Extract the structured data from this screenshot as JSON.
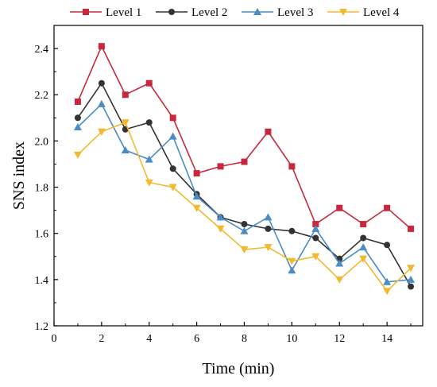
{
  "chart_data": {
    "type": "line",
    "xlabel": "Time (min)",
    "ylabel": "SNS index",
    "xlim": [
      0,
      15.5
    ],
    "ylim": [
      1.2,
      2.5
    ],
    "xticks": [
      0,
      2,
      4,
      6,
      8,
      10,
      12,
      14
    ],
    "yticks": [
      1.2,
      1.4,
      1.6,
      1.8,
      2.0,
      2.2,
      2.4
    ],
    "xtick_labels": [
      "0",
      "2",
      "4",
      "6",
      "8",
      "10",
      "12",
      "14"
    ],
    "ytick_labels": [
      "1.2",
      "1.4",
      "1.6",
      "1.8",
      "2.0",
      "2.2",
      "2.4"
    ],
    "legend_position": "top",
    "grid": false,
    "x": [
      1,
      2,
      3,
      4,
      5,
      6,
      7,
      8,
      9,
      10,
      11,
      12,
      13,
      14,
      15
    ],
    "series": [
      {
        "name": "Level 1",
        "color": "#c8283c",
        "marker": "square",
        "values": [
          2.17,
          2.41,
          2.2,
          2.25,
          2.1,
          1.86,
          1.89,
          1.91,
          2.04,
          1.89,
          1.64,
          1.71,
          1.64,
          1.71,
          1.62
        ]
      },
      {
        "name": "Level 2",
        "color": "#333333",
        "marker": "circle",
        "values": [
          2.1,
          2.25,
          2.05,
          2.08,
          1.88,
          1.77,
          1.67,
          1.64,
          1.62,
          1.61,
          1.58,
          1.49,
          1.58,
          1.55,
          1.37
        ]
      },
      {
        "name": "Level 3",
        "color": "#4a8cc4",
        "marker": "triangle-up",
        "values": [
          2.06,
          2.16,
          1.96,
          1.92,
          2.02,
          1.76,
          1.67,
          1.61,
          1.67,
          1.44,
          1.62,
          1.47,
          1.54,
          1.39,
          1.4
        ]
      },
      {
        "name": "Level 4",
        "color": "#f2b92e",
        "marker": "triangle-down",
        "values": [
          1.94,
          2.04,
          2.08,
          1.82,
          1.8,
          1.71,
          1.62,
          1.53,
          1.54,
          1.48,
          1.5,
          1.4,
          1.49,
          1.35,
          1.45
        ]
      }
    ]
  }
}
